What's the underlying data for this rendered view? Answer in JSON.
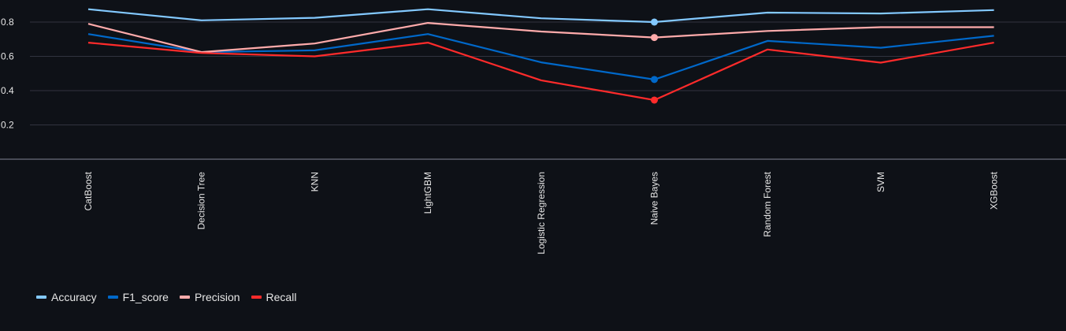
{
  "chart_data": {
    "type": "line",
    "title": "",
    "xlabel": "",
    "ylabel": "",
    "categories": [
      "CatBoost",
      "Decision Tree",
      "KNN",
      "LightGBM",
      "Logistic Regression",
      "Naive Bayes",
      "Random Forest",
      "SVM",
      "XGBoost"
    ],
    "series": [
      {
        "name": "Accuracy",
        "color": "#83c9ff",
        "values": [
          0.875,
          0.81,
          0.825,
          0.875,
          0.822,
          0.8,
          0.855,
          0.85,
          0.87
        ]
      },
      {
        "name": "F1_score",
        "color": "#0068c9",
        "values": [
          0.73,
          0.625,
          0.635,
          0.73,
          0.565,
          0.465,
          0.69,
          0.65,
          0.72
        ]
      },
      {
        "name": "Precision",
        "color": "#ffabab",
        "values": [
          0.79,
          0.625,
          0.675,
          0.795,
          0.745,
          0.71,
          0.748,
          0.77,
          0.77
        ]
      },
      {
        "name": "Recall",
        "color": "#ff2b2b",
        "values": [
          0.68,
          0.62,
          0.6,
          0.68,
          0.46,
          0.345,
          0.64,
          0.563,
          0.68
        ]
      }
    ],
    "highlighted_category": "Naive Bayes",
    "yticks": [
      "0.2",
      "0.4",
      "0.6",
      "0.8"
    ],
    "ylim": [
      0,
      0.94
    ],
    "grid": true,
    "legend_position": "bottom-left"
  }
}
